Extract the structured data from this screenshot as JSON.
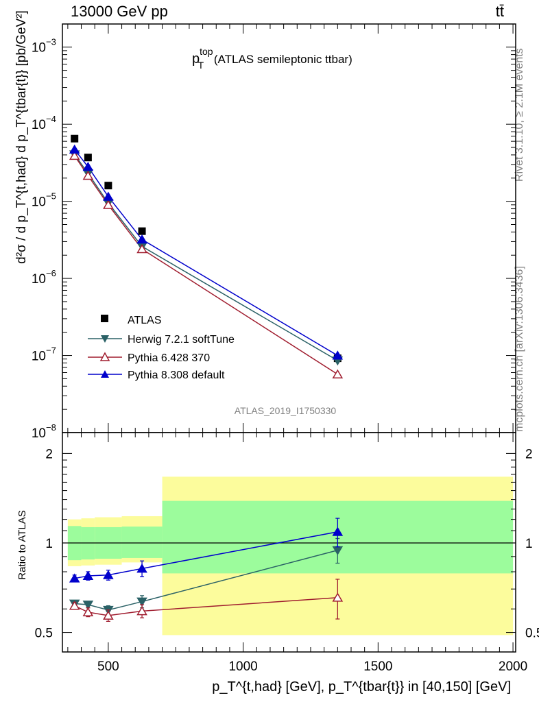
{
  "header": {
    "left_label": "13000 GeV pp",
    "right_label": "tt̄"
  },
  "side_labels": {
    "rivet": "Rivet 3.1.10, ≥ 2.1M events",
    "mcplots": "mcplots.cern.ch [arXiv:1306.3436]"
  },
  "analysis_id": "ATLAS_2019_I1750330",
  "plot_title": {
    "main": "p",
    "sup": "top",
    "sub": "T",
    "rest": " (ATLAS semileptonic ttbar)"
  },
  "axes": {
    "y_main_label": "d²σ / d p_T^{t,had} d p_T^{tbar{t}} [pb/GeV²]",
    "y_main_ticks": [
      "10",
      "10",
      "10",
      "10",
      "10",
      "10"
    ],
    "y_main_exponents": [
      "−3",
      "−4",
      "−5",
      "−6",
      "−7",
      "−8"
    ],
    "y_ratio_label": "Ratio to ATLAS",
    "y_ratio_ticks": [
      "2",
      "1",
      "0.5"
    ],
    "x_label": "p_T^{t,had} [GeV], p_T^{tbar{t}} in [40,150] [GeV]",
    "x_ticks": [
      "500",
      "1000",
      "1500",
      "2000"
    ]
  },
  "chart_data": {
    "type": "scatter",
    "x_range": [
      330,
      2010
    ],
    "y_main_range_log10": [
      -8,
      -2.7
    ],
    "y_main_scale": "log",
    "y_ratio_range": [
      0.43,
      2.35
    ],
    "y_ratio_scale": "log",
    "legend_placement": "lower-left",
    "data": {
      "name": "ATLAS",
      "x": [
        375,
        425,
        500,
        625,
        1350
      ],
      "y": [
        6.5e-05,
        3.7e-05,
        1.6e-05,
        4.1e-06,
        9.2e-08
      ],
      "bin_edges": [
        350,
        400,
        450,
        550,
        700,
        2000
      ],
      "stat_band_low": [
        0.875,
        0.88,
        0.885,
        0.89,
        0.79
      ],
      "stat_band_high": [
        1.14,
        1.13,
        1.13,
        1.135,
        1.385
      ],
      "total_band_low": [
        0.835,
        0.84,
        0.845,
        0.86,
        0.49
      ],
      "total_band_high": [
        1.2,
        1.21,
        1.22,
        1.23,
        1.67
      ]
    },
    "series": [
      {
        "name": "Herwig 7.2.1 softTune",
        "color": "#2a6166",
        "marker": "triangle-down-filled",
        "x": [
          375,
          425,
          500,
          625,
          1350
        ],
        "y": [
          4.05e-05,
          2.3e-05,
          9.5e-06,
          2.6e-06,
          8.6e-08
        ],
        "ratio": [
          0.625,
          0.62,
          0.595,
          0.635,
          0.945
        ],
        "ratio_err": [
          0.015,
          0.015,
          0.02,
          0.03,
          0.09
        ]
      },
      {
        "name": "Pythia 6.428 370",
        "color": "#a01d2f",
        "marker": "triangle-up-open",
        "x": [
          375,
          425,
          500,
          625,
          1350
        ],
        "y": [
          3.9e-05,
          2.15e-05,
          9e-06,
          2.4e-06,
          5.7e-08
        ],
        "ratio": [
          0.615,
          0.585,
          0.57,
          0.59,
          0.655
        ],
        "ratio_err": [
          0.015,
          0.02,
          0.025,
          0.03,
          0.1
        ]
      },
      {
        "name": "Pythia 8.308 default",
        "color": "#0000cc",
        "marker": "triangle-up-filled",
        "x": [
          375,
          425,
          500,
          625,
          1350
        ],
        "y": [
          4.7e-05,
          2.8e-05,
          1.15e-05,
          3.2e-06,
          1e-07
        ],
        "ratio": [
          0.76,
          0.775,
          0.78,
          0.82,
          1.09
        ],
        "ratio_err": [
          0.02,
          0.025,
          0.03,
          0.05,
          0.12
        ]
      }
    ]
  },
  "colors": {
    "stat_band": "#9cfc9c",
    "total_band": "#fcfc9c",
    "data_marker": "#000000"
  }
}
